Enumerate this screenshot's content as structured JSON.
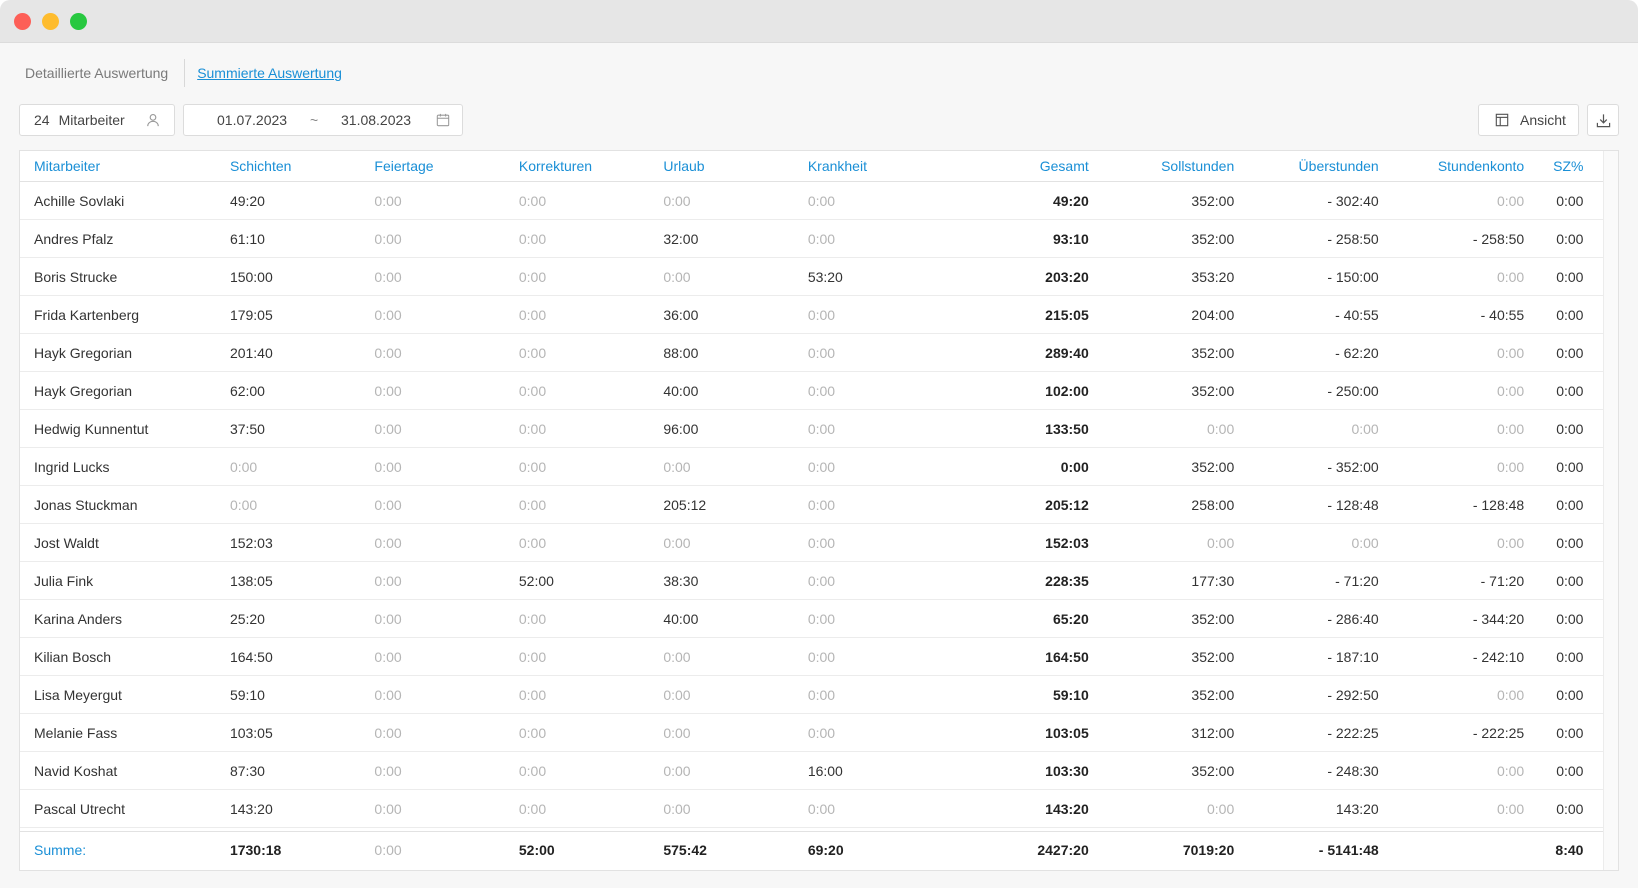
{
  "tabs": [
    {
      "label": "Detaillierte Auswertung"
    },
    {
      "label": "Summierte Auswertung"
    }
  ],
  "filter": {
    "employee_count": "24",
    "employee_label": "Mitarbeiter",
    "date_from": "01.07.2023",
    "date_sep": "~",
    "date_to": "31.08.2023"
  },
  "toolbar": {
    "view_label": "Ansicht"
  },
  "table": {
    "columns": [
      "Mitarbeiter",
      "Schichten",
      "Feiertage",
      "Korrekturen",
      "Urlaub",
      "Krankheit",
      "Gesamt",
      "Sollstunden",
      "Überstunden",
      "Stundenkonto",
      "SZ%"
    ],
    "rows": [
      [
        "Achille Sovlaki",
        "49:20",
        "0:00",
        "0:00",
        "0:00",
        "0:00",
        "49:20",
        "352:00",
        "- 302:40",
        "0:00",
        "0:00"
      ],
      [
        "Andres Pfalz",
        "61:10",
        "0:00",
        "0:00",
        "32:00",
        "0:00",
        "93:10",
        "352:00",
        "- 258:50",
        "- 258:50",
        "0:00"
      ],
      [
        "Boris Strucke",
        "150:00",
        "0:00",
        "0:00",
        "0:00",
        "53:20",
        "203:20",
        "353:20",
        "- 150:00",
        "0:00",
        "0:00"
      ],
      [
        "Frida Kartenberg",
        "179:05",
        "0:00",
        "0:00",
        "36:00",
        "0:00",
        "215:05",
        "204:00",
        "- 40:55",
        "- 40:55",
        "0:00"
      ],
      [
        "Hayk Gregorian",
        "201:40",
        "0:00",
        "0:00",
        "88:00",
        "0:00",
        "289:40",
        "352:00",
        "- 62:20",
        "0:00",
        "0:00"
      ],
      [
        "Hayk Gregorian",
        "62:00",
        "0:00",
        "0:00",
        "40:00",
        "0:00",
        "102:00",
        "352:00",
        "- 250:00",
        "0:00",
        "0:00"
      ],
      [
        "Hedwig Kunnentut",
        "37:50",
        "0:00",
        "0:00",
        "96:00",
        "0:00",
        "133:50",
        "0:00",
        "0:00",
        "0:00",
        "0:00"
      ],
      [
        "Ingrid Lucks",
        "0:00",
        "0:00",
        "0:00",
        "0:00",
        "0:00",
        "0:00",
        "352:00",
        "- 352:00",
        "0:00",
        "0:00"
      ],
      [
        "Jonas Stuckman",
        "0:00",
        "0:00",
        "0:00",
        "205:12",
        "0:00",
        "205:12",
        "258:00",
        "- 128:48",
        "- 128:48",
        "0:00"
      ],
      [
        "Jost Waldt",
        "152:03",
        "0:00",
        "0:00",
        "0:00",
        "0:00",
        "152:03",
        "0:00",
        "0:00",
        "0:00",
        "0:00"
      ],
      [
        "Julia Fink",
        "138:05",
        "0:00",
        "52:00",
        "38:30",
        "0:00",
        "228:35",
        "177:30",
        "- 71:20",
        "- 71:20",
        "0:00"
      ],
      [
        "Karina Anders",
        "25:20",
        "0:00",
        "0:00",
        "40:00",
        "0:00",
        "65:20",
        "352:00",
        "- 286:40",
        "- 344:20",
        "0:00"
      ],
      [
        "Kilian Bosch",
        "164:50",
        "0:00",
        "0:00",
        "0:00",
        "0:00",
        "164:50",
        "352:00",
        "- 187:10",
        "- 242:10",
        "0:00"
      ],
      [
        "Lisa Meyergut",
        "59:10",
        "0:00",
        "0:00",
        "0:00",
        "0:00",
        "59:10",
        "352:00",
        "- 292:50",
        "0:00",
        "0:00"
      ],
      [
        "Melanie Fass",
        "103:05",
        "0:00",
        "0:00",
        "0:00",
        "0:00",
        "103:05",
        "312:00",
        "- 222:25",
        "- 222:25",
        "0:00"
      ],
      [
        "Navid Koshat",
        "87:30",
        "0:00",
        "0:00",
        "0:00",
        "16:00",
        "103:30",
        "352:00",
        "- 248:30",
        "0:00",
        "0:00"
      ],
      [
        "Pascal Utrecht",
        "143:20",
        "0:00",
        "0:00",
        "0:00",
        "0:00",
        "143:20",
        "0:00",
        "143:20",
        "0:00",
        "0:00"
      ]
    ],
    "summary": [
      "Summe:",
      "1730:18",
      "0:00",
      "52:00",
      "575:42",
      "69:20",
      "2427:20",
      "7019:20",
      "- 5141:48",
      "",
      "8:40"
    ]
  },
  "icons": {
    "user": "user-icon",
    "calendar": "calendar-icon",
    "layout": "layout-icon",
    "download": "download-icon"
  },
  "colors": {
    "accent": "#1a8fd6",
    "muted_zero": "#b5b5b5"
  }
}
